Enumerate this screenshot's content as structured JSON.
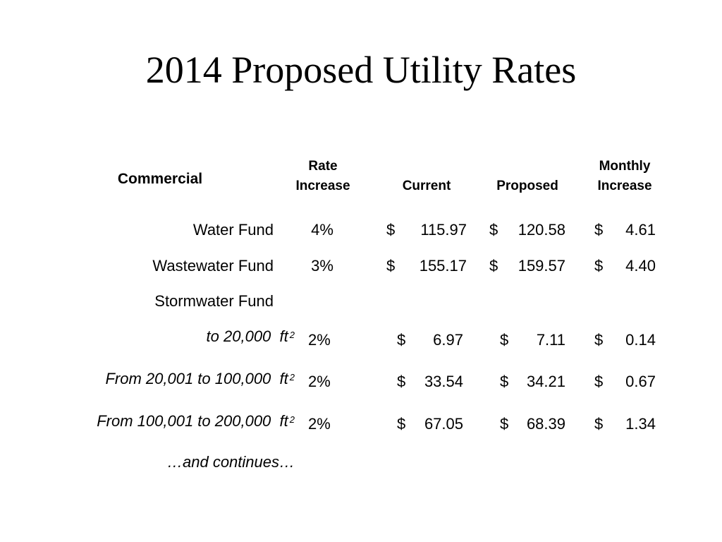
{
  "title": "2014 Proposed Utility Rates",
  "table": {
    "headers": {
      "category": "Commercial",
      "rate_line1": "Rate",
      "rate_line2": "Increase",
      "current": "Current",
      "proposed": "Proposed",
      "monthly_line1": "Monthly",
      "monthly_line2": "Increase"
    },
    "currency": "$",
    "sq_unit": "ft",
    "sq_exp": "2",
    "rows": [
      {
        "label": "Water Fund",
        "rate": "4%",
        "current": "115.97",
        "proposed": "120.58",
        "monthly": "4.61"
      },
      {
        "label": "Wastewater Fund",
        "rate": "3%",
        "current": "155.17",
        "proposed": "159.57",
        "monthly": "4.40"
      },
      {
        "label": "Stormwater Fund"
      },
      {
        "label": "to 20,000",
        "rate": "2%",
        "current": "6.97",
        "proposed": "7.11",
        "monthly": "0.14"
      },
      {
        "label": "From 20,001 to 100,000",
        "rate": "2%",
        "current": "33.54",
        "proposed": "34.21",
        "monthly": "0.67"
      },
      {
        "label": "From 100,001 to 200,000",
        "rate": "2%",
        "current": "67.05",
        "proposed": "68.39",
        "monthly": "1.34"
      },
      {
        "label": "…and continues…"
      }
    ]
  }
}
